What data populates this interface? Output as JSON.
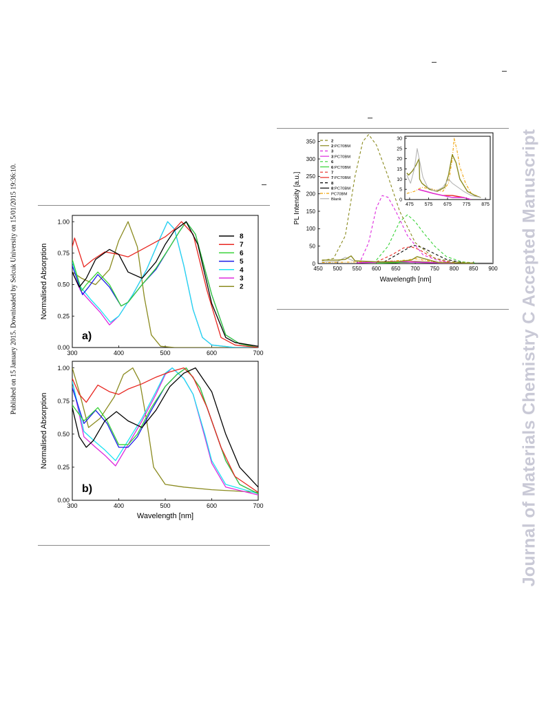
{
  "sidebar": {
    "text": "Published on 15 January 2015. Downloaded by Selcuk University on 15/01/2015 19:36:10."
  },
  "watermark": {
    "text": "Journal of Materials Chemistry C Accepted Manuscript"
  },
  "colors": {
    "s8": "#000000",
    "s7": "#e8251f",
    "s6": "#36d236",
    "s5": "#1a1ae6",
    "s4": "#18e3f2",
    "s3": "#dd28dd",
    "s2": "#8a8a1e",
    "blank": "#b5b5b5",
    "pcbm": "#f0a000"
  },
  "chart_data": [
    {
      "type": "line",
      "panel": "a)",
      "xlabel": "",
      "ylabel": "Normalised Absorption",
      "xlim": [
        300,
        700
      ],
      "ylim": [
        0,
        1.05
      ],
      "xticks": [
        "300",
        "400",
        "500",
        "600",
        "700"
      ],
      "yticks": [
        "0.00",
        "0.25",
        "0.50",
        "0.75",
        "1.00"
      ],
      "legend": [
        "8",
        "7",
        "6",
        "5",
        "4",
        "3",
        "2"
      ],
      "series": [
        {
          "name": "8",
          "x": [
            300,
            315,
            330,
            350,
            380,
            400,
            420,
            450,
            480,
            500,
            520,
            545,
            570,
            600,
            630,
            650,
            700
          ],
          "y": [
            0.6,
            0.48,
            0.55,
            0.7,
            0.78,
            0.74,
            0.6,
            0.55,
            0.68,
            0.82,
            0.93,
            1.0,
            0.82,
            0.35,
            0.08,
            0.04,
            0.01
          ]
        },
        {
          "name": "7",
          "x": [
            300,
            305,
            325,
            345,
            370,
            400,
            420,
            450,
            480,
            500,
            520,
            535,
            560,
            590,
            620,
            650,
            700
          ],
          "y": [
            0.8,
            0.87,
            0.64,
            0.7,
            0.76,
            0.74,
            0.72,
            0.78,
            0.84,
            0.88,
            0.94,
            1.0,
            0.9,
            0.45,
            0.08,
            0.02,
            0.0
          ]
        },
        {
          "name": "6",
          "x": [
            300,
            320,
            330,
            355,
            380,
            405,
            420,
            450,
            480,
            510,
            530,
            545,
            565,
            600,
            630,
            660,
            700
          ],
          "y": [
            0.7,
            0.45,
            0.5,
            0.6,
            0.5,
            0.33,
            0.36,
            0.5,
            0.63,
            0.8,
            0.92,
            1.0,
            0.9,
            0.42,
            0.1,
            0.03,
            0.0
          ]
        },
        {
          "name": "5",
          "x": [
            300,
            322,
            335,
            355,
            380,
            405,
            420,
            450,
            480,
            510,
            530,
            545,
            565,
            600,
            630,
            660,
            700
          ],
          "y": [
            0.65,
            0.42,
            0.48,
            0.58,
            0.48,
            0.33,
            0.36,
            0.5,
            0.62,
            0.8,
            0.92,
            1.0,
            0.9,
            0.42,
            0.1,
            0.03,
            0.0
          ]
        },
        {
          "name": "4",
          "x": [
            300,
            318,
            340,
            360,
            382,
            400,
            430,
            460,
            490,
            505,
            520,
            540,
            560,
            580,
            600,
            650,
            700
          ],
          "y": [
            0.68,
            0.48,
            0.38,
            0.3,
            0.2,
            0.25,
            0.42,
            0.62,
            0.88,
            1.0,
            0.94,
            0.65,
            0.3,
            0.08,
            0.02,
            0.0,
            0.0
          ]
        },
        {
          "name": "3",
          "x": [
            300,
            318,
            340,
            360,
            380,
            400,
            430,
            460,
            490,
            505,
            520,
            540,
            560,
            580,
            600,
            650,
            700
          ],
          "y": [
            0.6,
            0.45,
            0.36,
            0.28,
            0.18,
            0.25,
            0.42,
            0.62,
            0.88,
            1.0,
            0.94,
            0.65,
            0.3,
            0.08,
            0.02,
            0.0,
            0.0
          ]
        },
        {
          "name": "2",
          "x": [
            300,
            320,
            350,
            380,
            400,
            420,
            440,
            455,
            470,
            490,
            520,
            600,
            700
          ],
          "y": [
            0.6,
            0.55,
            0.5,
            0.62,
            0.85,
            1.0,
            0.8,
            0.4,
            0.1,
            0.01,
            0.0,
            0.0,
            0.0
          ]
        }
      ]
    },
    {
      "type": "line",
      "panel": "b)",
      "xlabel": "Wavelength [nm]",
      "ylabel": "Normalised Absorption",
      "xlim": [
        300,
        700
      ],
      "ylim": [
        0,
        1.05
      ],
      "xticks": [
        "300",
        "400",
        "500",
        "600",
        "700"
      ],
      "yticks": [
        "0.00",
        "0.25",
        "0.50",
        "0.75",
        "1.00"
      ],
      "series": [
        {
          "name": "8",
          "x": [
            300,
            315,
            330,
            345,
            370,
            395,
            420,
            450,
            480,
            510,
            540,
            565,
            600,
            630,
            660,
            700
          ],
          "y": [
            0.7,
            0.48,
            0.4,
            0.45,
            0.6,
            0.67,
            0.6,
            0.55,
            0.68,
            0.86,
            0.96,
            1.0,
            0.82,
            0.5,
            0.25,
            0.1
          ]
        },
        {
          "name": "7",
          "x": [
            300,
            315,
            330,
            355,
            380,
            400,
            420,
            450,
            480,
            510,
            540,
            560,
            590,
            620,
            650,
            700
          ],
          "y": [
            0.92,
            0.8,
            0.74,
            0.87,
            0.82,
            0.8,
            0.84,
            0.88,
            0.93,
            0.97,
            1.0,
            0.93,
            0.7,
            0.4,
            0.18,
            0.06
          ]
        },
        {
          "name": "6",
          "x": [
            300,
            325,
            355,
            375,
            400,
            420,
            440,
            470,
            500,
            525,
            545,
            575,
            600,
            630,
            660,
            700
          ],
          "y": [
            0.72,
            0.6,
            0.7,
            0.6,
            0.42,
            0.42,
            0.5,
            0.7,
            0.86,
            0.95,
            1.0,
            0.85,
            0.6,
            0.3,
            0.12,
            0.05
          ]
        },
        {
          "name": "5",
          "x": [
            300,
            325,
            350,
            375,
            400,
            420,
            440,
            470,
            500,
            525,
            545,
            575,
            600,
            630,
            660,
            700
          ],
          "y": [
            0.85,
            0.58,
            0.68,
            0.58,
            0.4,
            0.4,
            0.48,
            0.68,
            0.86,
            0.95,
            1.0,
            0.85,
            0.6,
            0.3,
            0.12,
            0.05
          ]
        },
        {
          "name": "4",
          "x": [
            300,
            325,
            350,
            370,
            393,
            420,
            450,
            480,
            500,
            515,
            540,
            560,
            585,
            600,
            630,
            700
          ],
          "y": [
            0.9,
            0.52,
            0.44,
            0.38,
            0.3,
            0.45,
            0.62,
            0.82,
            0.96,
            1.0,
            0.92,
            0.8,
            0.5,
            0.3,
            0.12,
            0.05
          ]
        },
        {
          "name": "3",
          "x": [
            300,
            325,
            350,
            370,
            393,
            420,
            450,
            480,
            500,
            515,
            540,
            560,
            585,
            600,
            630,
            700
          ],
          "y": [
            0.9,
            0.48,
            0.4,
            0.34,
            0.26,
            0.42,
            0.6,
            0.8,
            0.95,
            1.0,
            0.92,
            0.8,
            0.48,
            0.28,
            0.1,
            0.04
          ]
        },
        {
          "name": "2",
          "x": [
            300,
            315,
            335,
            360,
            390,
            410,
            430,
            445,
            460,
            475,
            500,
            540,
            600,
            650,
            700
          ],
          "y": [
            1.0,
            0.82,
            0.55,
            0.62,
            0.78,
            0.95,
            1.0,
            0.9,
            0.6,
            0.25,
            0.12,
            0.1,
            0.08,
            0.07,
            0.06
          ]
        }
      ]
    },
    {
      "type": "line",
      "xlabel": "Wavelength [nm]",
      "ylabel": "PL Intensity [a.u.]",
      "xlim": [
        450,
        900
      ],
      "ylim": [
        0,
        375
      ],
      "xticks": [
        "450",
        "500",
        "550",
        "600",
        "650",
        "700",
        "750",
        "800",
        "850",
        "900"
      ],
      "yticks": [
        "0",
        "50",
        "100",
        "150",
        "200",
        "250",
        "300",
        "350"
      ],
      "legend": [
        "2",
        "2:PC70BM",
        "3",
        "3:PC70BM",
        "6",
        "6:PC70BM",
        "7",
        "7:PC70BM",
        "8",
        "8:PC70BM",
        "PC70BM",
        "Blank"
      ],
      "series": [
        {
          "name": "2",
          "x": [
            460,
            490,
            520,
            545,
            565,
            580,
            600,
            630,
            660,
            700,
            750,
            800,
            850
          ],
          "y": [
            8,
            15,
            80,
            250,
            350,
            370,
            340,
            250,
            150,
            60,
            15,
            5,
            2
          ]
        },
        {
          "name": "2:PC70BM",
          "x": [
            460,
            500,
            520,
            535,
            545,
            600,
            650,
            690,
            705,
            720,
            760,
            850
          ],
          "y": [
            10,
            10,
            12,
            22,
            8,
            5,
            5,
            10,
            20,
            15,
            3,
            1
          ]
        },
        {
          "name": "3",
          "x": [
            560,
            580,
            600,
            615,
            630,
            650,
            680,
            720,
            760,
            800
          ],
          "y": [
            10,
            60,
            160,
            195,
            190,
            150,
            80,
            25,
            8,
            2
          ]
        },
        {
          "name": "3:PC70BM",
          "x": [
            550,
            600,
            640,
            680,
            720,
            760,
            800
          ],
          "y": [
            2,
            4,
            6,
            5,
            3,
            2,
            1
          ]
        },
        {
          "name": "6",
          "x": [
            600,
            630,
            660,
            680,
            700,
            720,
            750,
            780,
            820,
            860
          ],
          "y": [
            10,
            50,
            120,
            140,
            120,
            90,
            50,
            20,
            5,
            1
          ]
        },
        {
          "name": "6:PC70BM",
          "x": [
            600,
            650,
            700,
            740,
            780
          ],
          "y": [
            1,
            3,
            5,
            3,
            1
          ]
        },
        {
          "name": "7",
          "x": [
            600,
            640,
            670,
            690,
            710,
            740,
            770,
            800
          ],
          "y": [
            5,
            25,
            45,
            48,
            40,
            20,
            8,
            2
          ]
        },
        {
          "name": "7:PC70BM",
          "x": [
            600,
            650,
            700,
            750,
            800
          ],
          "y": [
            1,
            4,
            6,
            3,
            1
          ]
        },
        {
          "name": "8",
          "x": [
            620,
            660,
            690,
            700,
            720,
            750,
            780,
            820
          ],
          "y": [
            5,
            30,
            50,
            52,
            45,
            28,
            12,
            3
          ]
        },
        {
          "name": "8:PC70BM",
          "x": [
            600,
            650,
            700,
            750,
            800
          ],
          "y": [
            1,
            3,
            5,
            3,
            1
          ]
        },
        {
          "name": "PC70BM",
          "x": [
            460,
            520,
            600,
            680,
            700,
            720,
            760,
            850
          ],
          "y": [
            3,
            4,
            5,
            10,
            14,
            10,
            4,
            1
          ]
        },
        {
          "name": "Blank",
          "x": [
            460,
            500,
            520,
            540,
            560,
            600,
            700,
            800,
            900
          ],
          "y": [
            5,
            6,
            18,
            8,
            5,
            4,
            3,
            2,
            2
          ]
        }
      ],
      "inset": {
        "xlim": [
          450,
          900
        ],
        "ylim": [
          0,
          31
        ],
        "xticks": [
          "475",
          "575",
          "675",
          "775",
          "875"
        ],
        "yticks": [
          "0",
          "5",
          "10",
          "15",
          "20",
          "25",
          "30"
        ],
        "series": [
          {
            "name": "Blank",
            "x": [
              460,
              480,
              500,
              515,
              530,
              545,
              570,
              610,
              650,
              680,
              700,
              730,
              760,
              800,
              850
            ],
            "y": [
              12,
              8,
              15,
              25,
              18,
              11,
              6,
              4,
              6,
              10,
              8,
              6,
              4,
              2,
              1
            ]
          },
          {
            "name": "2:PC70BM",
            "x": [
              460,
              470,
              490,
              510,
              525,
              528,
              540,
              580,
              620,
              660,
              680,
              700,
              720,
              740,
              780,
              820,
              850
            ],
            "y": [
              13,
              12,
              14,
              17,
              20,
              10,
              8,
              5,
              4,
              6,
              12,
              22,
              18,
              10,
              4,
              2,
              1
            ]
          },
          {
            "name": "PC70BM",
            "x": [
              460,
              500,
              540,
              600,
              650,
              680,
              700,
              710,
              725,
              740,
              770,
              800,
              850
            ],
            "y": [
              3,
              4,
              6,
              5,
              4,
              8,
              20,
              30,
              24,
              16,
              8,
              3,
              1
            ]
          },
          {
            "name": "3:PC70BM",
            "x": [
              520,
              560,
              600,
              650,
              700,
              760,
              800
            ],
            "y": [
              5,
              4,
              3,
              2,
              1,
              1,
              0
            ]
          },
          {
            "name": "7:PC70BM",
            "x": [
              520,
              560,
              600,
              650,
              700,
              760,
              800
            ],
            "y": [
              5,
              4,
              3,
              2,
              2,
              1,
              0
            ]
          }
        ]
      }
    }
  ]
}
